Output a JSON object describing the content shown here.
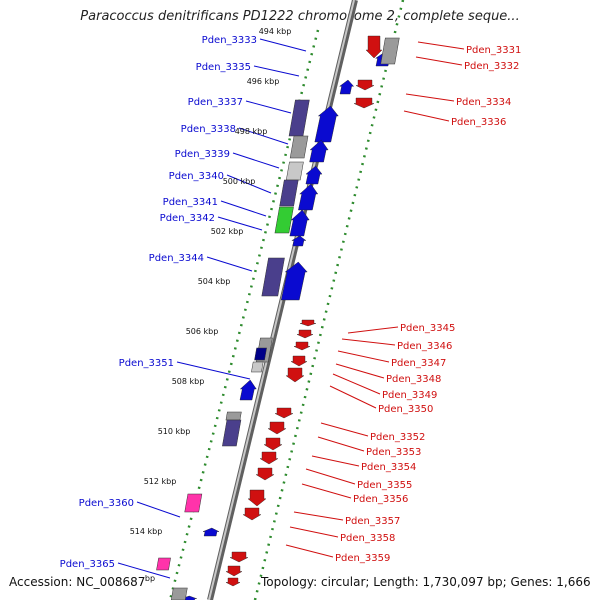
{
  "title": "Paracoccus denitrificans PD1222 chromosome 2, complete seque...",
  "footer": {
    "accession": "Accession: NC_008687",
    "topology": "Topology: circular; Length: 1,730,097 bp; Genes: 1,666"
  },
  "colors": {
    "left_genes": "#0a0ad0",
    "right_genes": "#d01010",
    "backbone": "#7a7a7a",
    "dots": "#2e8b2e",
    "cds_block": "#4a3f8c",
    "grey_block": "#9a9a9a",
    "green_block": "#33cc33",
    "pink_block": "#ff33aa"
  },
  "ticks": [
    "494 kbp",
    "496 kbp",
    "498 kbp",
    "500 kbp",
    "502 kbp",
    "504 kbp",
    "506 kbp",
    "508 kbp",
    "510 kbp",
    "512 kbp",
    "514 kbp",
    "bp"
  ],
  "left_labels": [
    "Pden_3333",
    "Pden_3335",
    "Pden_3337",
    "Pden_3338",
    "Pden_3339",
    "Pden_3340",
    "Pden_3341",
    "Pden_3342",
    "Pden_3344",
    "Pden_3351",
    "Pden_3360",
    "Pden_3365"
  ],
  "right_labels": [
    "Pden_3331",
    "Pden_3332",
    "Pden_3334",
    "Pden_3336",
    "Pden_3345",
    "Pden_3346",
    "Pden_3347",
    "Pden_3348",
    "Pden_3349",
    "Pden_3350",
    "Pden_3352",
    "Pden_3353",
    "Pden_3354",
    "Pden_3355",
    "Pden_3356",
    "Pden_3357",
    "Pden_3358",
    "Pden_3359"
  ]
}
